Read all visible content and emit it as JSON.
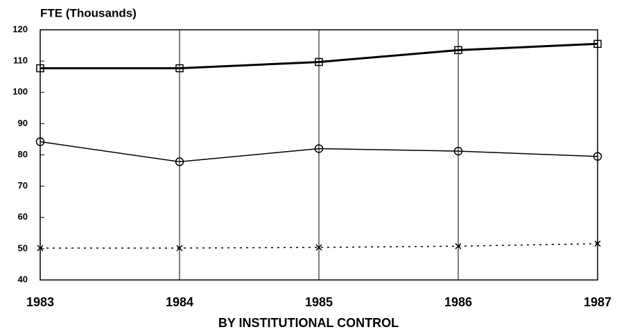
{
  "chart_data": {
    "type": "line",
    "title": "FTE (Thousands)",
    "xlabel": "BY INSTITUTIONAL CONTROL",
    "x": [
      1983,
      1984,
      1985,
      1986,
      1987
    ],
    "series": [
      {
        "color": "#000000",
        "marker": "square",
        "style": "solid",
        "width": 3,
        "values": [
          107.7,
          107.7,
          109.7,
          113.5,
          115.5
        ]
      },
      {
        "color": "#000000",
        "marker": "circle",
        "style": "solid",
        "width": 1.5,
        "values": [
          84.2,
          77.8,
          82,
          81.2,
          79.5
        ]
      },
      {
        "color": "#000000",
        "marker": "x",
        "style": "dotted",
        "width": 1.5,
        "values": [
          50.2,
          50.2,
          50.4,
          50.8,
          51.6
        ]
      }
    ],
    "xlim": [
      1983,
      1987
    ],
    "xticks": [
      1983,
      1984,
      1985,
      1986,
      1987
    ],
    "ylim": [
      40,
      120
    ],
    "yticks": [
      40,
      50,
      60,
      70,
      80,
      90,
      100,
      110,
      120
    ],
    "grid": true
  }
}
